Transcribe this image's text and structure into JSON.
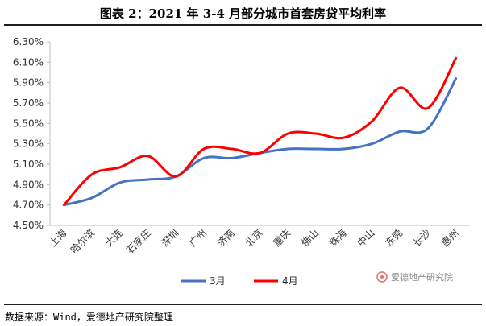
{
  "title": "图表 2：2021 年 3-4 月部分城市首套房贷平均利率",
  "source": "数据来源：Wind，爱德地产研究院整理",
  "watermark": "爱德地产研究院",
  "chart_data": {
    "type": "line",
    "categories": [
      "上海",
      "哈尔滨",
      "大连",
      "石家庄",
      "深圳",
      "广州",
      "济南",
      "北京",
      "重庆",
      "佛山",
      "珠海",
      "中山",
      "东莞",
      "长沙",
      "惠州"
    ],
    "series": [
      {
        "name": "3月",
        "color": "#4472c4",
        "values": [
          4.7,
          4.77,
          4.92,
          4.95,
          4.98,
          5.16,
          5.16,
          5.21,
          5.25,
          5.25,
          5.25,
          5.3,
          5.42,
          5.45,
          5.94
        ]
      },
      {
        "name": "4月",
        "color": "#ff0000",
        "values": [
          4.7,
          5.0,
          5.07,
          5.18,
          4.98,
          5.25,
          5.25,
          5.21,
          5.4,
          5.4,
          5.36,
          5.52,
          5.85,
          5.65,
          6.14
        ]
      }
    ],
    "y_ticks": [
      "4.50%",
      "4.70%",
      "4.90%",
      "5.10%",
      "5.30%",
      "5.50%",
      "5.70%",
      "5.90%",
      "6.10%",
      "6.30%"
    ],
    "ylim": [
      4.5,
      6.3
    ],
    "legend_position": "bottom-center",
    "grid": false
  }
}
